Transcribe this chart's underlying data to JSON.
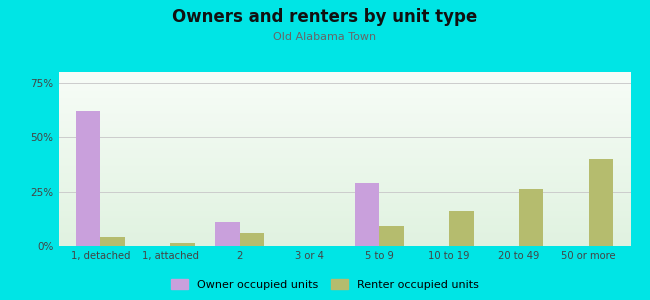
{
  "title": "Owners and renters by unit type",
  "subtitle": "Old Alabama Town",
  "categories": [
    "1, detached",
    "1, attached",
    "2",
    "3 or 4",
    "5 to 9",
    "10 to 19",
    "20 to 49",
    "50 or more"
  ],
  "owner_values": [
    62,
    0,
    11,
    0,
    29,
    0,
    0,
    0
  ],
  "renter_values": [
    4,
    1.5,
    6,
    0,
    9,
    16,
    26,
    40
  ],
  "owner_color": "#c9a0dc",
  "renter_color": "#b5bc6e",
  "ylim": [
    0,
    80
  ],
  "yticks": [
    0,
    25,
    50,
    75
  ],
  "ytick_labels": [
    "0%",
    "25%",
    "50%",
    "75%"
  ],
  "figure_bg": "#00e5e5",
  "bar_width": 0.35,
  "legend_owner": "Owner occupied units",
  "legend_renter": "Renter occupied units"
}
